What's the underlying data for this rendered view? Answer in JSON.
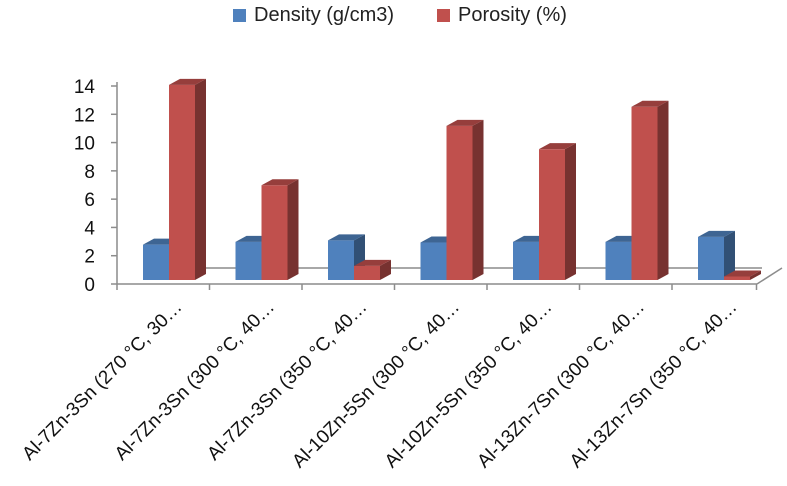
{
  "chart_data": {
    "type": "bar",
    "title": "",
    "xlabel": "",
    "ylabel": "",
    "ylim": [
      0,
      14
    ],
    "yticks": [
      "0",
      "2",
      "4",
      "6",
      "8",
      "10",
      "12",
      "14"
    ],
    "grid": false,
    "legend_position": "top",
    "style": "3d-clustered-column",
    "categories": [
      "Al-7Zn-3Sn (270 °C, 30…",
      "Al-7Zn-3Sn (300 °C, 40…",
      "Al-7Zn-3Sn (350 °C, 40…",
      "Al-10Zn-5Sn (300 °C, 40…",
      "Al-10Zn-5Sn (350 °C, 40…",
      "Al-13Zn-7Sn (300 °C, 40…",
      "Al-13Zn-7Sn (350 °C, 40…"
    ],
    "series": [
      {
        "name": "Density (g/cm3)",
        "color": "#4F81BD",
        "values": [
          2.5,
          2.7,
          2.8,
          2.65,
          2.7,
          2.7,
          3.05
        ]
      },
      {
        "name": "Porosity (%)",
        "color": "#C0504D",
        "values": [
          13.8,
          6.7,
          1.0,
          10.9,
          9.25,
          12.25,
          0.25
        ]
      }
    ]
  }
}
